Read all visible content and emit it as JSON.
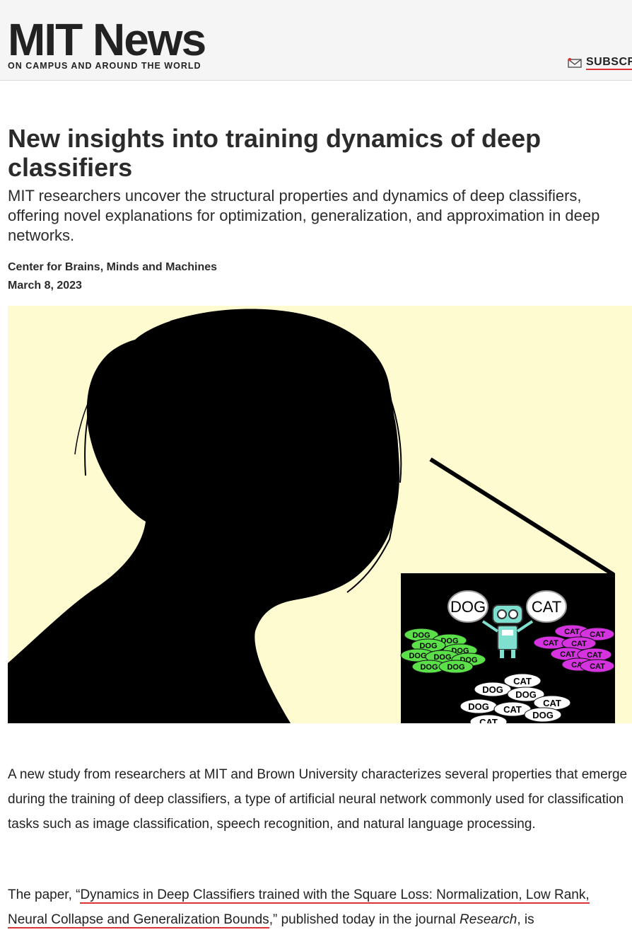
{
  "header": {
    "logo": "MIT News",
    "tagline": "ON CAMPUS AND AROUND THE WORLD",
    "subscribe_label": "SUBSCR"
  },
  "article": {
    "title": "New insights into training dynamics of deep classifiers",
    "subtitle": "MIT researchers uncover the structural properties and dynamics of deep classifiers, offering novel explanations for optimization, generalization, and approximation in deep networks.",
    "author": "Center for Brains, Minds and Machines",
    "date": "March 8, 2023",
    "paragraph1": "A new study from researchers at MIT and Brown University characterizes several properties that emerge during the training of deep classifiers, a type of artificial neural network commonly used for classification tasks such as image classification, speech recognition, and natural language processing.",
    "paragraph2_prefix": "The paper, “",
    "paragraph2_link": "Dynamics in Deep Classifiers trained with the Square Loss: Normalization, Low Rank, Neural Collapse and Generalization Bounds",
    "paragraph2_middle": ",” published today in the journal ",
    "paragraph2_journal": "Research",
    "paragraph2_suffix": ", is"
  },
  "illustration": {
    "bubble_dog": "DOG",
    "bubble_cat": "CAT",
    "green_label": "DOG",
    "magenta_label": "CAT",
    "white_dog_label": "DOG",
    "white_cat_label": "CAT"
  },
  "colors": {
    "accent_red": "#d33333",
    "hero_background": "#fffbd1",
    "green_tag": "#5be04a",
    "magenta_tag": "#d633e0",
    "robot": "#7fe0d0"
  }
}
